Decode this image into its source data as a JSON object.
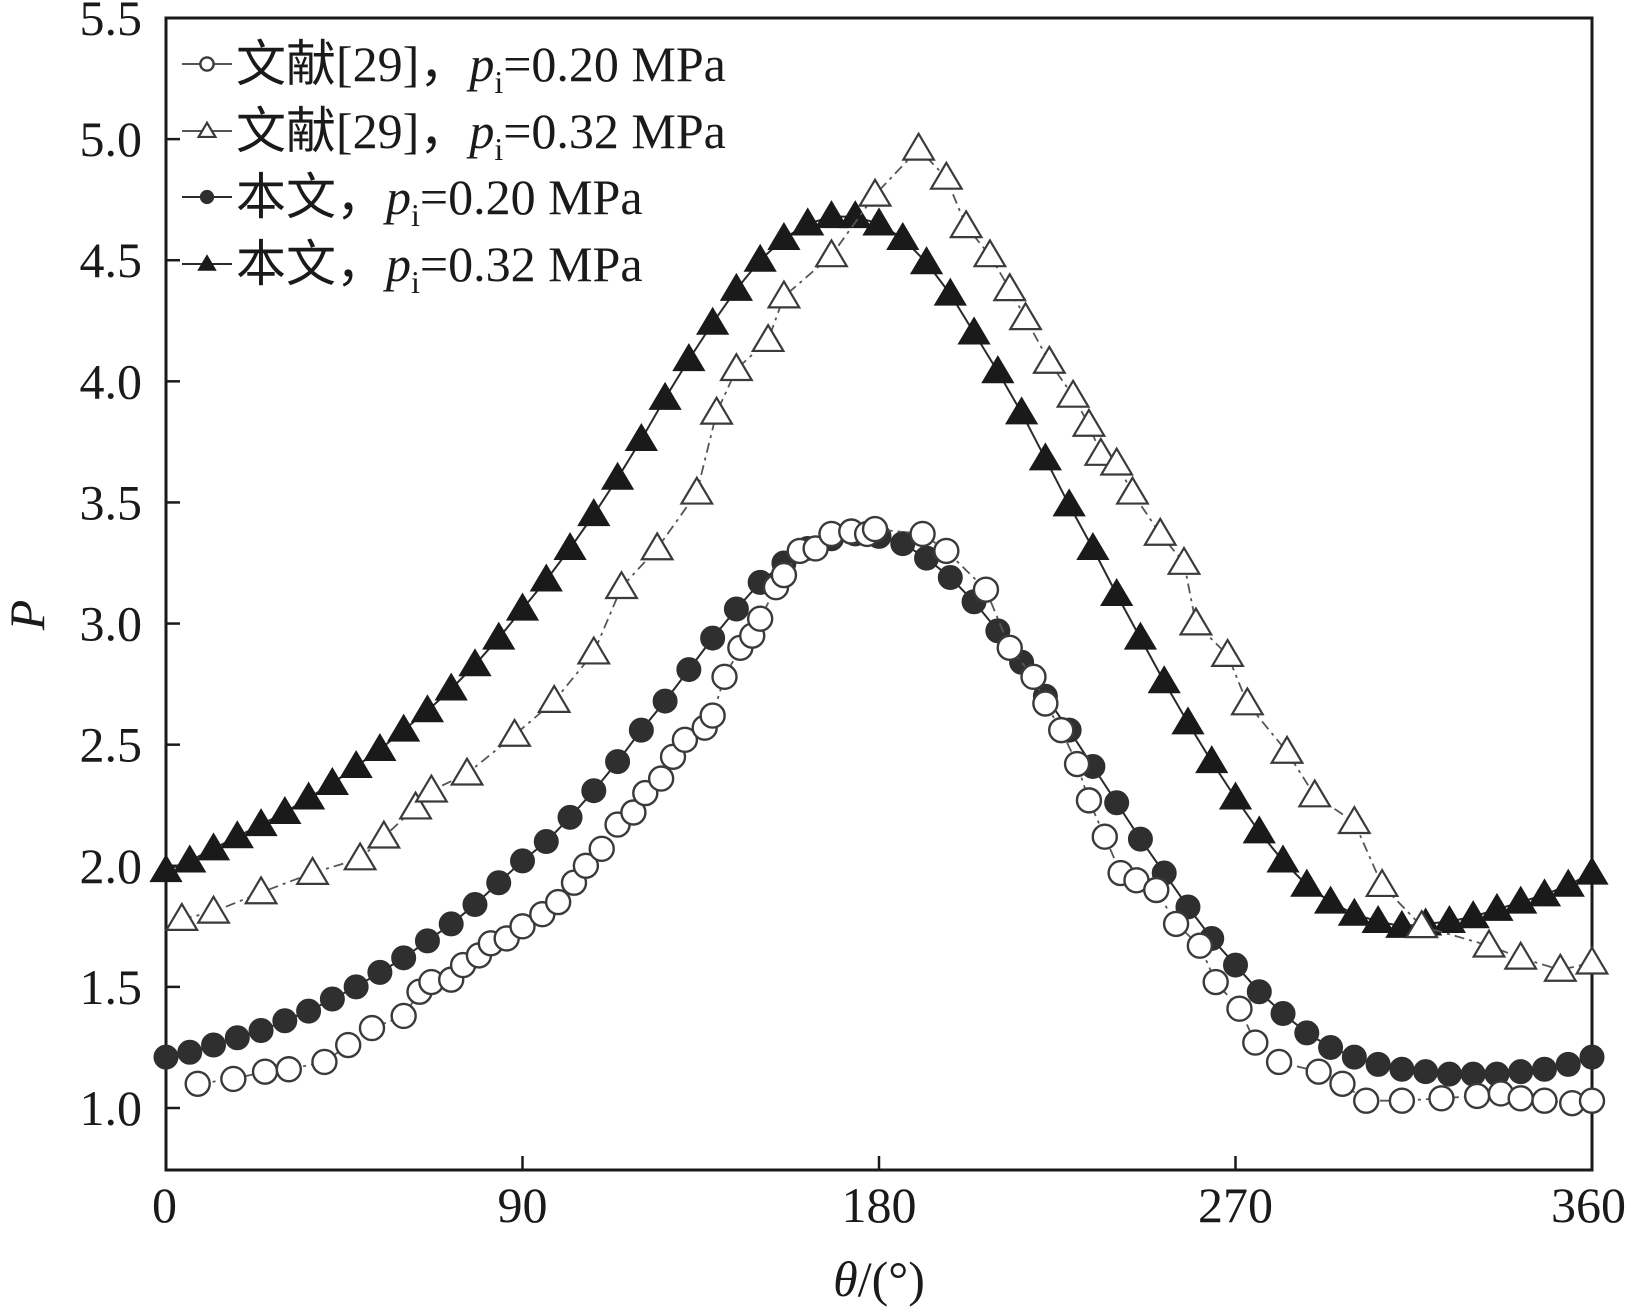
{
  "chart_data": {
    "type": "scatter",
    "title": "",
    "xlabel": "θ/(°)",
    "xlabel_var": "θ",
    "xlabel_unit": "/(°)",
    "ylabel": "P",
    "xlim": [
      0,
      360
    ],
    "ylim": [
      0.8,
      5.5
    ],
    "xticks": [
      0,
      90,
      180,
      270,
      360
    ],
    "xtick_labels": [
      "0",
      "90",
      "180",
      "270",
      "360"
    ],
    "yticks": [
      1.0,
      1.5,
      2.0,
      2.5,
      3.0,
      3.5,
      4.0,
      4.5,
      5.0,
      5.5
    ],
    "ytick_labels": [
      "1.0",
      "1.5",
      "2.0",
      "2.5",
      "3.0",
      "3.5",
      "4.0",
      "4.5",
      "5.0",
      "5.5"
    ],
    "grid": false,
    "legend_position": "top-left",
    "series": [
      {
        "name": "文献[29]，pi=0.20 MPa",
        "label_prefix": "文献[29]，",
        "label_var": "p",
        "label_sub": "i",
        "label_value": "=0.20 MPa",
        "marker": "open-circle",
        "x": [
          8,
          17,
          25,
          31,
          40,
          46,
          52,
          60,
          64,
          67,
          72,
          75,
          79,
          82,
          86,
          90,
          95,
          99,
          103,
          106,
          110,
          114,
          118,
          121,
          125,
          128,
          131,
          136,
          138,
          141,
          145,
          148,
          150,
          154,
          156,
          160,
          164,
          168,
          173,
          177,
          179,
          191,
          197,
          207,
          213,
          219,
          222,
          226,
          230,
          233,
          237,
          241,
          245,
          250,
          255,
          261,
          265,
          271,
          275,
          281,
          291,
          297,
          303,
          312,
          322,
          331,
          337,
          342,
          348,
          355,
          360
        ],
        "y": [
          1.1,
          1.12,
          1.15,
          1.16,
          1.19,
          1.26,
          1.33,
          1.38,
          1.48,
          1.52,
          1.53,
          1.59,
          1.63,
          1.68,
          1.7,
          1.75,
          1.8,
          1.85,
          1.93,
          2.0,
          2.07,
          2.17,
          2.22,
          2.3,
          2.36,
          2.45,
          2.52,
          2.57,
          2.62,
          2.78,
          2.9,
          2.95,
          3.02,
          3.15,
          3.2,
          3.3,
          3.31,
          3.37,
          3.38,
          3.37,
          3.39,
          3.37,
          3.3,
          3.14,
          2.9,
          2.78,
          2.67,
          2.56,
          2.42,
          2.27,
          2.12,
          1.97,
          1.94,
          1.9,
          1.76,
          1.67,
          1.52,
          1.41,
          1.27,
          1.19,
          1.15,
          1.1,
          1.03,
          1.03,
          1.04,
          1.05,
          1.06,
          1.04,
          1.03,
          1.02,
          1.03
        ]
      },
      {
        "name": "文献[29]，pi=0.32 MPa",
        "label_prefix": "文献[29]，",
        "label_var": "p",
        "label_sub": "i",
        "label_value": "=0.32 MPa",
        "marker": "open-triangle",
        "x": [
          4,
          12,
          24,
          37,
          49,
          55,
          63,
          67,
          76,
          88,
          98,
          108,
          115,
          124,
          134,
          139,
          144,
          152,
          156,
          168,
          179,
          190,
          197,
          202,
          208,
          213,
          217,
          223,
          229,
          233,
          236,
          240,
          244,
          251,
          257,
          260,
          268,
          273,
          283,
          290,
          300,
          307,
          317,
          334,
          342,
          352,
          360
        ],
        "y": [
          1.78,
          1.81,
          1.89,
          1.97,
          2.03,
          2.12,
          2.24,
          2.31,
          2.38,
          2.54,
          2.68,
          2.88,
          3.15,
          3.31,
          3.54,
          3.87,
          4.05,
          4.17,
          4.35,
          4.52,
          4.77,
          4.96,
          4.84,
          4.64,
          4.52,
          4.38,
          4.26,
          4.08,
          3.94,
          3.82,
          3.7,
          3.66,
          3.54,
          3.37,
          3.25,
          3.0,
          2.87,
          2.67,
          2.47,
          2.29,
          2.18,
          1.92,
          1.75,
          1.67,
          1.62,
          1.57,
          1.6
        ]
      },
      {
        "name": "本文，pi=0.20 MPa",
        "label_prefix": "本文，",
        "label_var": "p",
        "label_sub": "i",
        "label_value": "=0.20 MPa",
        "marker": "filled-circle",
        "x": [
          0,
          6,
          12,
          18,
          24,
          30,
          36,
          42,
          48,
          54,
          60,
          66,
          72,
          78,
          84,
          90,
          96,
          102,
          108,
          114,
          120,
          126,
          132,
          138,
          144,
          150,
          156,
          162,
          168,
          174,
          180,
          186,
          192,
          198,
          204,
          210,
          216,
          222,
          228,
          234,
          240,
          246,
          252,
          258,
          264,
          270,
          276,
          282,
          288,
          294,
          300,
          306,
          312,
          318,
          324,
          330,
          336,
          342,
          348,
          354,
          360
        ],
        "y": [
          1.21,
          1.23,
          1.26,
          1.29,
          1.32,
          1.36,
          1.4,
          1.45,
          1.5,
          1.56,
          1.62,
          1.69,
          1.76,
          1.84,
          1.93,
          2.02,
          2.1,
          2.2,
          2.31,
          2.43,
          2.56,
          2.68,
          2.81,
          2.94,
          3.06,
          3.17,
          3.25,
          3.31,
          3.35,
          3.37,
          3.36,
          3.33,
          3.27,
          3.19,
          3.09,
          2.97,
          2.84,
          2.7,
          2.56,
          2.41,
          2.26,
          2.11,
          1.97,
          1.83,
          1.7,
          1.59,
          1.48,
          1.39,
          1.31,
          1.25,
          1.21,
          1.18,
          1.16,
          1.15,
          1.14,
          1.14,
          1.14,
          1.15,
          1.16,
          1.18,
          1.21
        ]
      },
      {
        "name": "本文，pi=0.32 MPa",
        "label_prefix": "本文，",
        "label_var": "p",
        "label_sub": "i",
        "label_value": "=0.32 MPa",
        "marker": "filled-triangle",
        "x": [
          0,
          6,
          12,
          18,
          24,
          30,
          36,
          42,
          48,
          54,
          60,
          66,
          72,
          78,
          84,
          90,
          96,
          102,
          108,
          114,
          120,
          126,
          132,
          138,
          144,
          150,
          156,
          162,
          168,
          174,
          180,
          186,
          192,
          198,
          204,
          210,
          216,
          222,
          228,
          234,
          240,
          246,
          252,
          258,
          264,
          270,
          276,
          282,
          288,
          294,
          300,
          306,
          312,
          318,
          324,
          330,
          336,
          342,
          348,
          354,
          360
        ],
        "y": [
          1.98,
          2.02,
          2.07,
          2.12,
          2.17,
          2.22,
          2.28,
          2.34,
          2.41,
          2.48,
          2.56,
          2.64,
          2.73,
          2.83,
          2.94,
          3.06,
          3.18,
          3.31,
          3.45,
          3.6,
          3.76,
          3.93,
          4.09,
          4.24,
          4.38,
          4.5,
          4.59,
          4.65,
          4.68,
          4.68,
          4.65,
          4.59,
          4.49,
          4.36,
          4.2,
          4.04,
          3.87,
          3.68,
          3.49,
          3.31,
          3.12,
          2.94,
          2.76,
          2.59,
          2.43,
          2.28,
          2.14,
          2.02,
          1.92,
          1.85,
          1.8,
          1.77,
          1.75,
          1.76,
          1.77,
          1.79,
          1.82,
          1.85,
          1.88,
          1.92,
          1.97
        ]
      }
    ]
  }
}
